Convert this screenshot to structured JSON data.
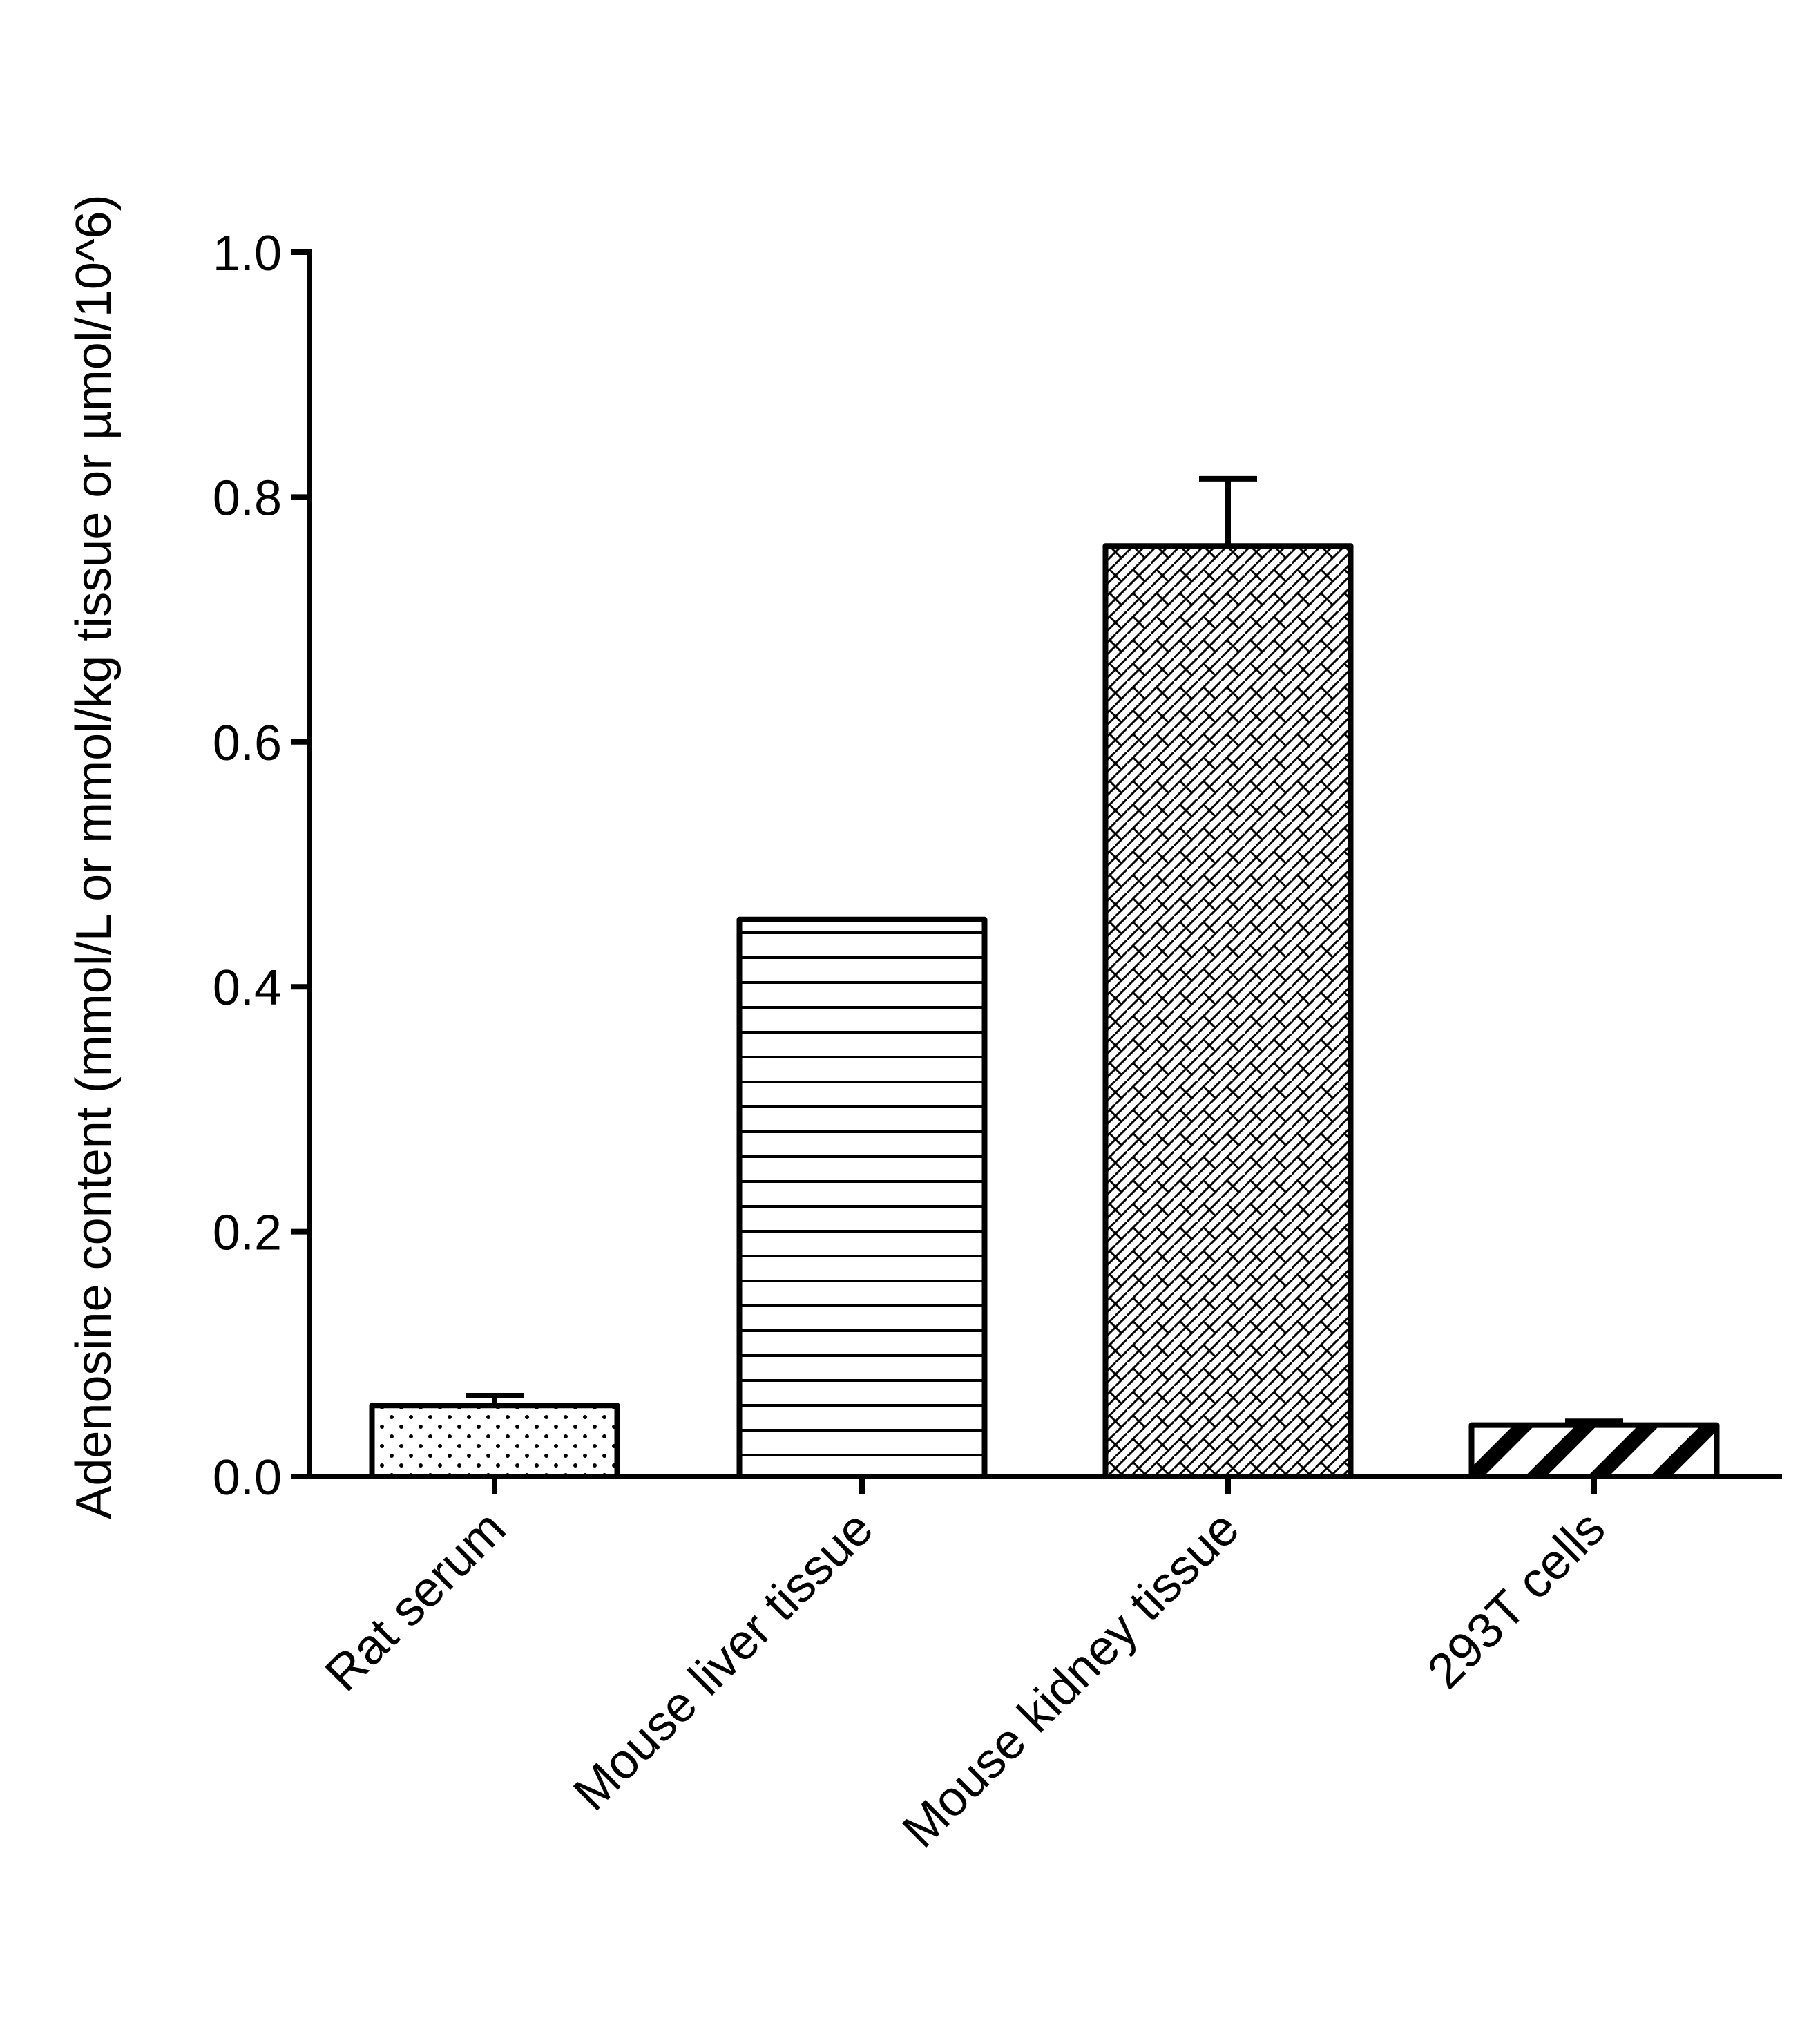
{
  "chart_data": {
    "type": "bar",
    "title": "",
    "xlabel": "",
    "ylabel": "Adenosine content (mmol/L or mmol/kg tissue or µmol/10^6)",
    "ylim": [
      0,
      1.0
    ],
    "yticks": [
      0.0,
      0.2,
      0.4,
      0.6,
      0.8,
      1.0
    ],
    "ytick_labels": [
      "0.0",
      "0.2",
      "0.4",
      "0.6",
      "0.8",
      "1.0"
    ],
    "grid": false,
    "legend": "none",
    "categories": [
      "Rat serum",
      "Mouse liver tissue",
      "Mouse kidney tissue",
      "293T cells"
    ],
    "values": [
      0.058,
      0.455,
      0.76,
      0.042
    ],
    "error_upper": [
      0.066,
      0.455,
      0.815,
      0.045
    ],
    "patterns": [
      "dots",
      "horizontal-lines",
      "crosshatch",
      "diagonal-thick"
    ],
    "colors": {
      "stroke": "#000000",
      "fill": "#ffffff"
    }
  }
}
